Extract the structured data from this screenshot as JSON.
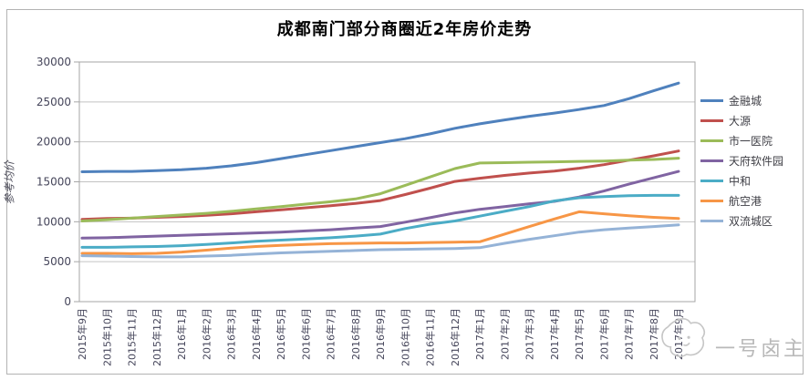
{
  "chart_data": {
    "type": "line",
    "title": "成都南门部分商圈近2年房价走势",
    "ylabel": "参考均价",
    "ylim": [
      0,
      30000
    ],
    "ytick_interval": 5000,
    "yticks": [
      0,
      5000,
      10000,
      15000,
      20000,
      25000,
      30000
    ],
    "grid": true,
    "legend_position": "right",
    "x_label_rotation": -90,
    "categories": [
      "2015年9月",
      "2015年10月",
      "2015年11月",
      "2015年12月",
      "2016年1月",
      "2016年2月",
      "2016年3月",
      "2016年4月",
      "2016年5月",
      "2016年6月",
      "2016年7月",
      "2016年8月",
      "2016年9月",
      "2016年10月",
      "2016年11月",
      "2016年12月",
      "2017年1月",
      "2017年2月",
      "2017年3月",
      "2017年4月",
      "2017年5月",
      "2017年6月",
      "2017年7月",
      "2017年8月",
      "2017年9月"
    ],
    "series": [
      {
        "name": "金融城",
        "color": "#4F81BD",
        "values": [
          16250,
          16300,
          16300,
          16400,
          16500,
          16700,
          17000,
          17400,
          17900,
          18400,
          18900,
          19400,
          19900,
          20400,
          21000,
          21700,
          22250,
          22750,
          23200,
          23600,
          24050,
          24550,
          25400,
          26400,
          27350
        ]
      },
      {
        "name": "大源",
        "color": "#C0504D",
        "values": [
          10300,
          10400,
          10450,
          10550,
          10650,
          10800,
          11000,
          11250,
          11500,
          11750,
          12000,
          12300,
          12650,
          13400,
          14200,
          15050,
          15450,
          15800,
          16100,
          16350,
          16700,
          17150,
          17700,
          18250,
          18850
        ]
      },
      {
        "name": "市一医院",
        "color": "#9BBB59",
        "values": [
          10100,
          10250,
          10450,
          10650,
          10850,
          11050,
          11300,
          11600,
          11900,
          12200,
          12500,
          12850,
          13500,
          14550,
          15600,
          16650,
          17350,
          17400,
          17450,
          17500,
          17550,
          17600,
          17700,
          17800,
          17950
        ]
      },
      {
        "name": "天府软件园",
        "color": "#8064A2",
        "values": [
          7950,
          8000,
          8100,
          8200,
          8300,
          8400,
          8500,
          8600,
          8700,
          8850,
          9000,
          9200,
          9400,
          9950,
          10500,
          11100,
          11550,
          11900,
          12250,
          12550,
          13100,
          13850,
          14700,
          15500,
          16300
        ]
      },
      {
        "name": "中和",
        "color": "#4BACC6",
        "values": [
          6800,
          6800,
          6850,
          6900,
          7000,
          7150,
          7350,
          7550,
          7700,
          7850,
          8000,
          8200,
          8450,
          9150,
          9700,
          10100,
          10700,
          11300,
          11900,
          12600,
          13000,
          13150,
          13250,
          13300,
          13300
        ]
      },
      {
        "name": "航空港",
        "color": "#F79646",
        "values": [
          6050,
          6050,
          6000,
          6050,
          6200,
          6450,
          6700,
          6900,
          7050,
          7150,
          7250,
          7300,
          7350,
          7350,
          7400,
          7450,
          7500,
          8450,
          9400,
          10350,
          11250,
          11000,
          10750,
          10550,
          10400
        ]
      },
      {
        "name": "双流城区",
        "color": "#95B3D7",
        "values": [
          5750,
          5700,
          5650,
          5600,
          5600,
          5700,
          5800,
          5950,
          6100,
          6200,
          6300,
          6400,
          6500,
          6550,
          6600,
          6650,
          6750,
          7300,
          7800,
          8250,
          8700,
          9000,
          9200,
          9400,
          9600
        ]
      }
    ]
  },
  "watermark": {
    "text": "一号卤主"
  }
}
